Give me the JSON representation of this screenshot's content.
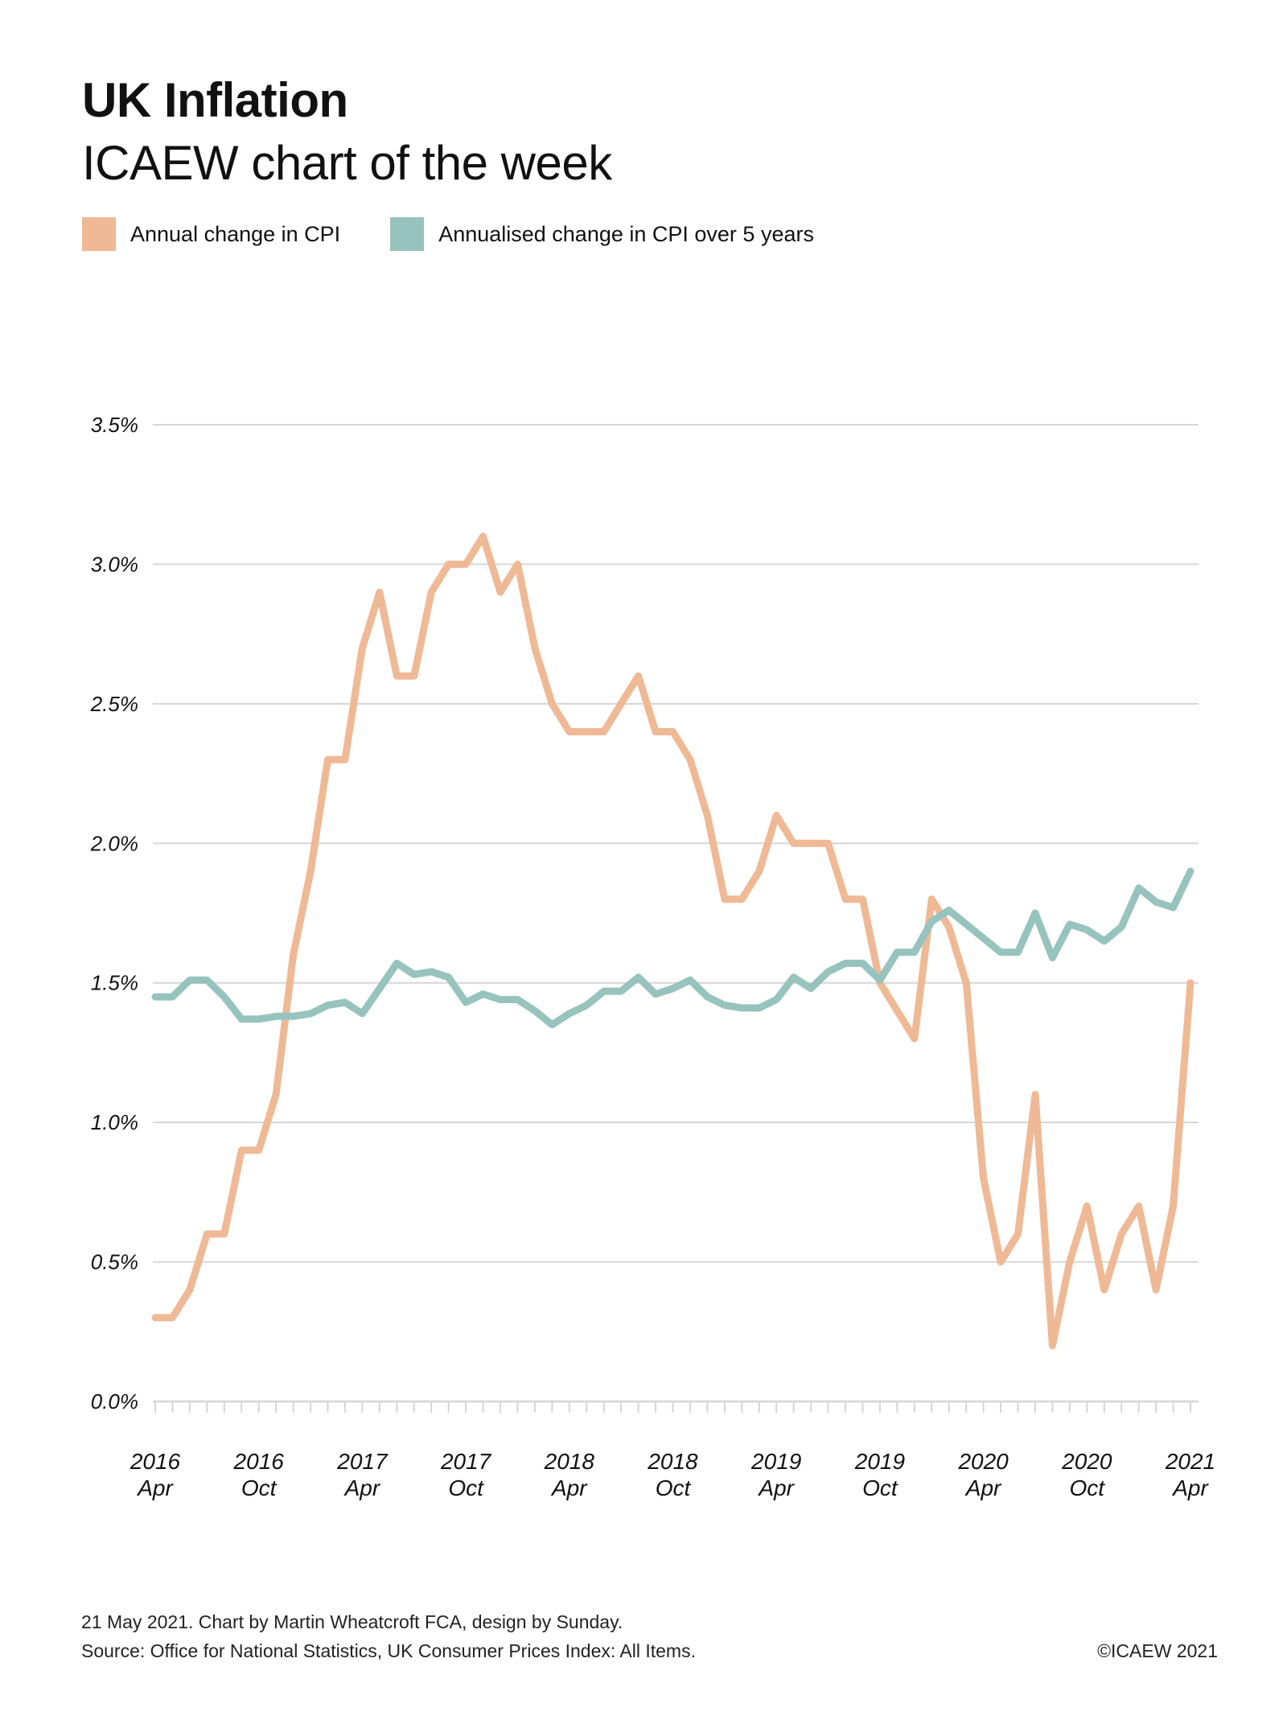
{
  "header": {
    "title": "UK Inflation",
    "subtitle": "ICAEW chart of the week"
  },
  "legend": [
    {
      "label": "Annual change in CPI",
      "color": "#efb995"
    },
    {
      "label": "Annualised change in CPI over 5 years",
      "color": "#97c3be"
    }
  ],
  "footer": {
    "line1": "21 May 2021.   Chart by Martin Wheatcroft FCA, design by Sunday.",
    "line2": "Source: Office for National Statistics, UK Consumer Prices Index: All Items.",
    "copyright": "©ICAEW 2021"
  },
  "chart_data": {
    "type": "line",
    "title": "UK Inflation",
    "subtitle": "ICAEW chart of the week",
    "xlabel": "",
    "ylabel": "",
    "ylim": [
      0.0,
      3.5
    ],
    "y_ticks": [
      "0.0%",
      "0.5%",
      "1.0%",
      "1.5%",
      "2.0%",
      "2.5%",
      "3.0%",
      "3.5%"
    ],
    "y_tick_values": [
      0.0,
      0.5,
      1.0,
      1.5,
      2.0,
      2.5,
      3.0,
      3.5
    ],
    "grid": true,
    "legend_position": "top-left",
    "x_tick_labels": [
      {
        "year": "2016",
        "month": "Apr",
        "index": 0
      },
      {
        "year": "2016",
        "month": "Oct",
        "index": 6
      },
      {
        "year": "2017",
        "month": "Apr",
        "index": 12
      },
      {
        "year": "2017",
        "month": "Oct",
        "index": 18
      },
      {
        "year": "2018",
        "month": "Apr",
        "index": 24
      },
      {
        "year": "2018",
        "month": "Oct",
        "index": 30
      },
      {
        "year": "2019",
        "month": "Apr",
        "index": 36
      },
      {
        "year": "2019",
        "month": "Oct",
        "index": 42
      },
      {
        "year": "2020",
        "month": "Apr",
        "index": 48
      },
      {
        "year": "2020",
        "month": "Oct",
        "index": 54
      },
      {
        "year": "2021",
        "month": "Apr",
        "index": 60
      }
    ],
    "x_start": "2016-04",
    "x_end": "2021-04",
    "x_count": 61,
    "series": [
      {
        "name": "Annual change in CPI",
        "color": "#efb995",
        "values": [
          0.3,
          0.3,
          0.4,
          0.6,
          0.6,
          0.9,
          0.9,
          1.1,
          1.6,
          1.9,
          2.3,
          2.3,
          2.7,
          2.9,
          2.6,
          2.6,
          2.9,
          3.0,
          3.0,
          3.1,
          2.9,
          3.0,
          2.7,
          2.5,
          2.4,
          2.4,
          2.4,
          2.5,
          2.6,
          2.4,
          2.4,
          2.3,
          2.1,
          1.8,
          1.8,
          1.9,
          2.1,
          2.0,
          2.0,
          2.0,
          1.8,
          1.8,
          1.5,
          1.4,
          1.3,
          1.8,
          1.7,
          1.5,
          0.8,
          0.5,
          0.6,
          1.1,
          0.2,
          0.5,
          0.7,
          0.4,
          0.6,
          0.7,
          0.4,
          0.7,
          1.5
        ]
      },
      {
        "name": "Annualised change in CPI over 5 years",
        "color": "#97c3be",
        "values": [
          1.45,
          1.45,
          1.51,
          1.51,
          1.45,
          1.37,
          1.37,
          1.38,
          1.38,
          1.39,
          1.42,
          1.43,
          1.39,
          1.48,
          1.57,
          1.53,
          1.54,
          1.52,
          1.43,
          1.46,
          1.44,
          1.44,
          1.4,
          1.35,
          1.39,
          1.42,
          1.47,
          1.47,
          1.52,
          1.46,
          1.48,
          1.51,
          1.45,
          1.42,
          1.41,
          1.41,
          1.44,
          1.52,
          1.48,
          1.54,
          1.57,
          1.57,
          1.51,
          1.61,
          1.61,
          1.72,
          1.76,
          1.71,
          1.66,
          1.61,
          1.61,
          1.75,
          1.59,
          1.71,
          1.69,
          1.65,
          1.7,
          1.84,
          1.79,
          1.77,
          1.9
        ]
      }
    ]
  }
}
